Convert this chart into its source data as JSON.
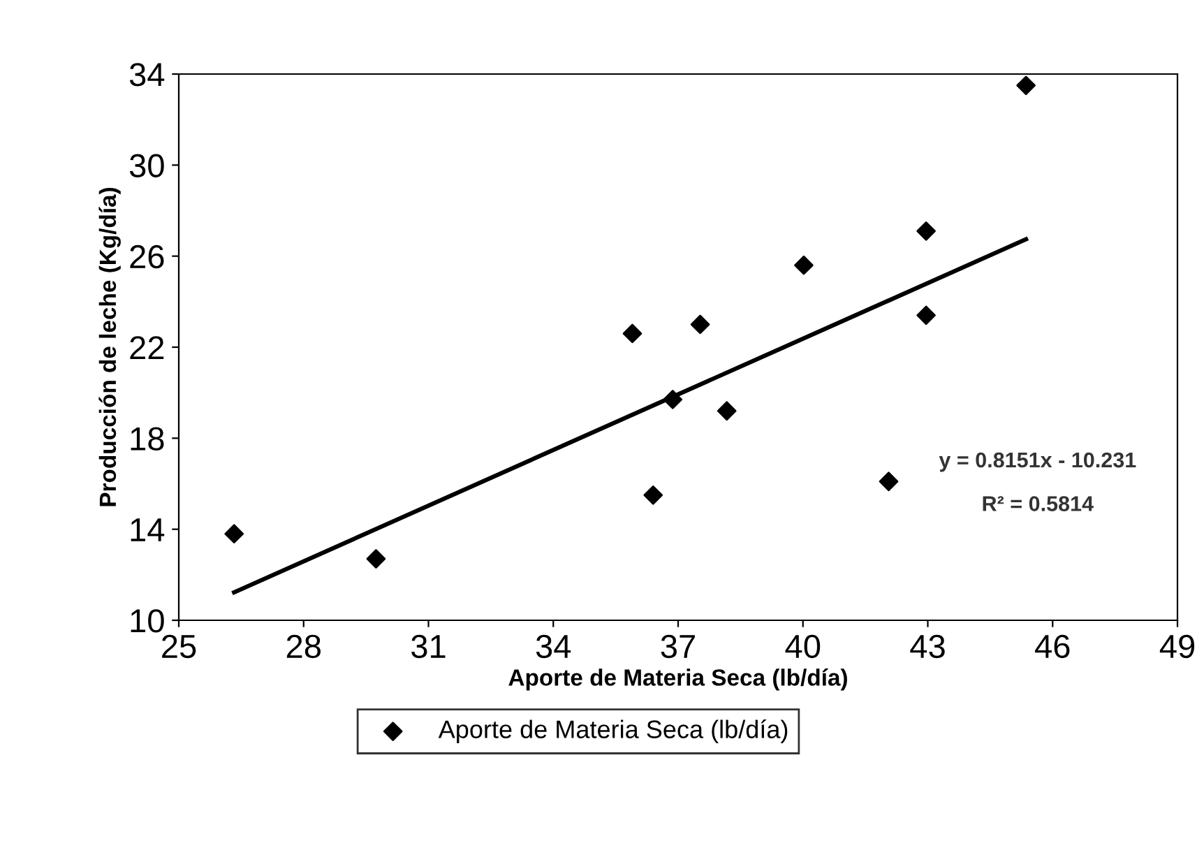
{
  "chart_data": {
    "type": "scatter",
    "xlabel": "Aporte de Materia Seca (lb/día)",
    "ylabel": "Producción de leche (Kg/día)",
    "xlim": [
      25,
      49
    ],
    "xticks": [
      25,
      28,
      31,
      34,
      37,
      40,
      43,
      46,
      49
    ],
    "ylim": [
      10,
      34
    ],
    "yticks": [
      10,
      14,
      18,
      22,
      26,
      30,
      34
    ],
    "grid": false,
    "legend": "bottom",
    "marker": "diamond",
    "series": [
      {
        "name": "Aporte de Materia Seca (lb/día)",
        "color": "#000000",
        "x": [
          26.33,
          29.74,
          35.9,
          36.4,
          36.87,
          37.53,
          38.17,
          40.02,
          42.06,
          42.96,
          42.96,
          45.36
        ],
        "values": [
          13.8,
          12.7,
          22.6,
          15.5,
          19.7,
          23.0,
          19.2,
          25.6,
          16.1,
          23.4,
          27.1,
          33.5
        ]
      },
      {
        "type": "line",
        "color": "#000000",
        "line_style": "solid",
        "marker": "none",
        "x": [
          26.33,
          45.36
        ],
        "values": [
          11.23,
          26.74
        ]
      }
    ],
    "annotations": [
      "y = 0.8151x - 10.231",
      "R² = 0.5814"
    ]
  }
}
